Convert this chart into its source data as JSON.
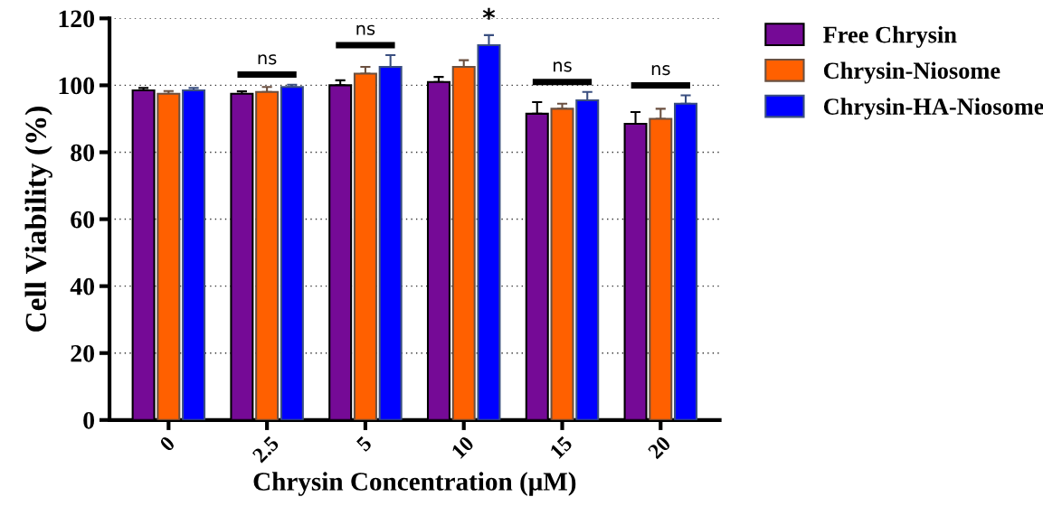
{
  "chart_data": {
    "type": "bar",
    "xlabel": "Chrysin Concentration (μM)",
    "ylabel": "Cell Viability (%)",
    "categories": [
      "0",
      "2.5",
      "5",
      "10",
      "15",
      "20"
    ],
    "series": [
      {
        "name": "Free Chrysin",
        "color": "#750a96",
        "values": [
          98.5,
          97.5,
          100,
          101,
          91.5,
          88.5
        ],
        "errors": [
          0.7,
          0.7,
          1.5,
          1.5,
          3.5,
          3.5
        ]
      },
      {
        "name": "Chrysin-Niosome",
        "color": "#ff6000",
        "values": [
          97.5,
          98,
          103.5,
          105.5,
          93,
          90
        ],
        "errors": [
          0.8,
          1.5,
          2,
          2,
          1.5,
          3
        ]
      },
      {
        "name": "Chrysin-HA-Niosome",
        "color": "#0000ff",
        "values": [
          98.5,
          99.5,
          105.5,
          112,
          95.5,
          94.5
        ],
        "errors": [
          0.7,
          0.7,
          3.5,
          3,
          2.5,
          2.5
        ]
      }
    ],
    "ylim": [
      0,
      120
    ],
    "yticks": [
      0,
      20,
      40,
      60,
      80,
      100,
      120
    ],
    "grid": "y",
    "legend": "top right",
    "annotations": [
      "ns",
      "ns",
      "*",
      "ns",
      "ns"
    ]
  }
}
